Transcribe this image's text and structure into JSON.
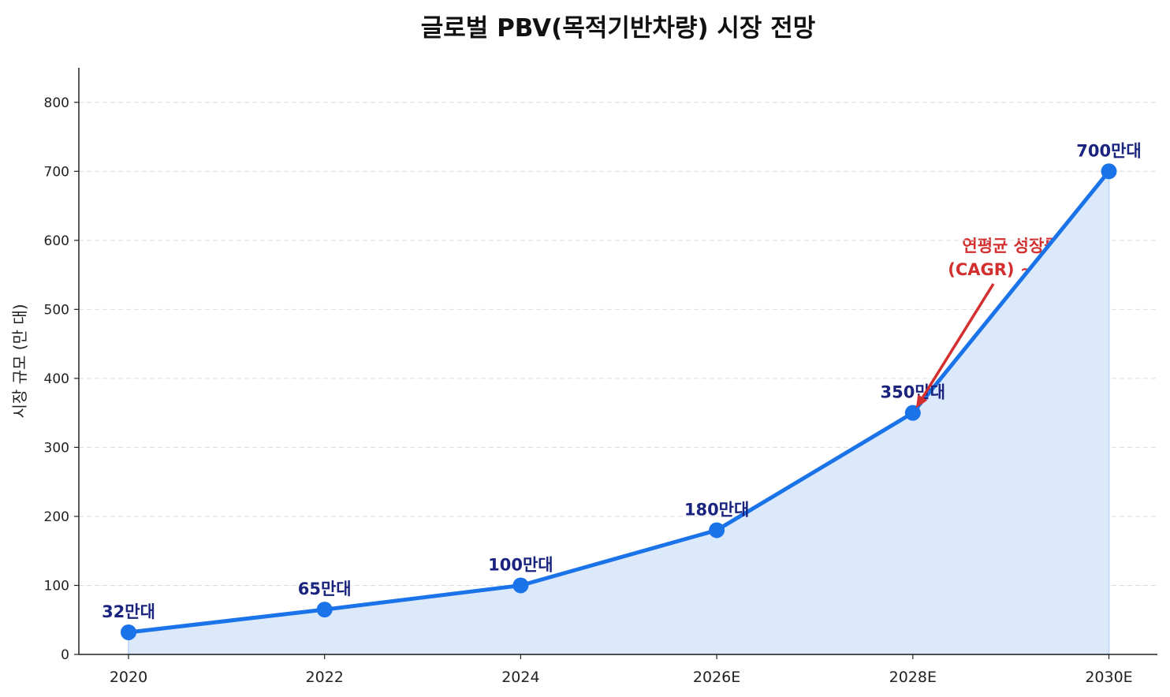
{
  "chart_data": {
    "type": "line",
    "title": "글로벌 PBV(목적기반차량) 시장 전망",
    "xlabel": "",
    "ylabel": "시장 규모 (만 대)",
    "categories": [
      "2020",
      "2022",
      "2024",
      "2026E",
      "2028E",
      "2030E"
    ],
    "values": [
      32,
      65,
      100,
      180,
      350,
      700
    ],
    "data_labels": [
      "32만대",
      "65만대",
      "100만대",
      "180만대",
      "350만대",
      "700만대"
    ],
    "ylim": [
      0,
      850
    ],
    "yticks": [
      0,
      100,
      200,
      300,
      400,
      500,
      600,
      700,
      800
    ],
    "grid": "horizontal dashed",
    "fill_under_line": true,
    "annotation": {
      "lines": [
        "연평균 성장률",
        "(CAGR) ~33%"
      ],
      "arrow_target_category": "2028E",
      "arrow_target_value": 350,
      "color": "#d32f2f"
    },
    "colors": {
      "line": "#1a73e8",
      "fill": "#dce9fb",
      "labels": "#1a237e"
    }
  }
}
